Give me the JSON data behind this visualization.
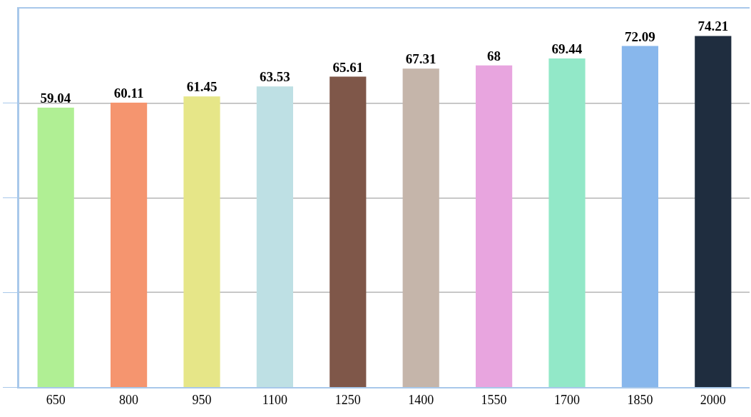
{
  "chart_data": {
    "type": "bar",
    "categories": [
      "650",
      "800",
      "950",
      "1100",
      "1250",
      "1400",
      "1550",
      "1700",
      "1850",
      "2000"
    ],
    "values": [
      59.04,
      60.11,
      61.45,
      63.53,
      65.61,
      67.31,
      68,
      69.44,
      72.09,
      74.21
    ],
    "colors": [
      "#b0ef94",
      "#f5956f",
      "#e6e688",
      "#bee0e4",
      "#7f5749",
      "#c5b5aa",
      "#e8a5df",
      "#92e8c8",
      "#88b7ec",
      "#1f2d3f"
    ],
    "ylim": [
      0,
      80
    ],
    "yticks": [
      {
        "value": 0,
        "label": null
      },
      {
        "value": 20,
        "label": null
      },
      {
        "value": 40,
        "label": null
      },
      {
        "value": 60,
        "label": null
      }
    ],
    "grid": "y",
    "tick_labels": "x",
    "data_labels": true
  }
}
